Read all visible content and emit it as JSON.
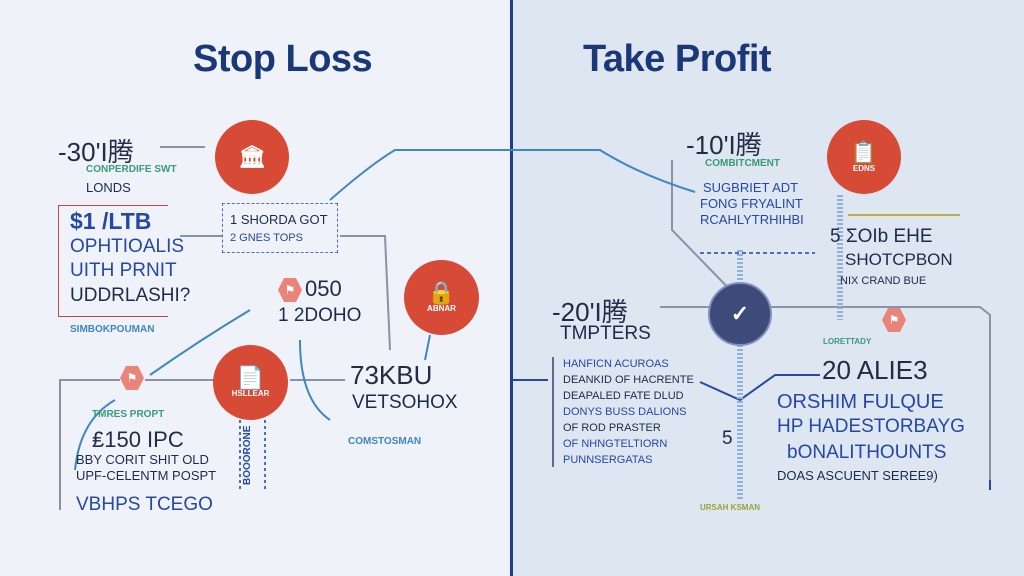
{
  "colors": {
    "left_bg": "#eff3f9",
    "right_bg": "#dde6f1",
    "divider": "#1f3f8e",
    "title": "#1a3878",
    "accent_red": "#d64a36",
    "dark_circle": "#3e4a7a",
    "line_blue": "#3f86c2"
  },
  "left": {
    "title": "Stop Loss",
    "a_value": "-30'I腾",
    "a_caption": "CONPERDIFE SWT",
    "a_label": "LONDS",
    "b_lines": [
      "$1 /LTB",
      "OPHTIOALIS",
      "UITH PRNIT",
      "UDDRLASHI?"
    ],
    "b_caption": "SIMBOKPOUMAN",
    "c_lines": [
      "1 SHORDA GOT",
      "2 GNES TOPS"
    ],
    "d_lines": [
      "050",
      "1 2DOHO"
    ],
    "circle_right_label": "ABNAR",
    "e_caption": "TMRES PROPT",
    "e_lines": [
      "₤150 IPC",
      "BBY CORIT SHIT OLD",
      "UPF-CELENTM POSPT",
      "VBHPS TCEGO"
    ],
    "circle_mid_label": "HSLLEAR",
    "vertical_label": "BOOORONE",
    "f_lines": [
      "73KBU",
      "VETSOHOX"
    ],
    "f_caption": "COMSTOSMAN"
  },
  "right": {
    "title": "Take Profit",
    "a_value": "-10'I腾",
    "a_caption": "COMBITCMENT",
    "a_lines": [
      "SUGBRIET ADT",
      "FONG FRYALINT",
      "RCAHLYTRHIHBI"
    ],
    "circle_label": "EDNS",
    "b_lines": [
      "5 ΣOIb EHE",
      "SHOTCPBON",
      "NIX CRAND BUE"
    ],
    "c_value": "-20'I腾",
    "c_label": "TMPTERS",
    "d_lines": [
      "HANFICN ACUROAS",
      "DEANKID OF HACRENTE",
      "DEAPALED FATE DLUD",
      "DONYS BUSS DALIONS",
      "OF ROD PRASTER",
      "OF NHNGTELTIORN",
      "PUNNSERGATAS"
    ],
    "num5": "5",
    "green_caption": "LORETTADY",
    "bottom_caption": "URSAH KSMAN",
    "e_value": "20 ALIE3",
    "e_lines": [
      "ORSHIM FULQUE",
      "HP HADESTORBAYG",
      "bONALITHOUNTS"
    ],
    "e_footer": "DOAS ASCUENT SEREE9)"
  }
}
